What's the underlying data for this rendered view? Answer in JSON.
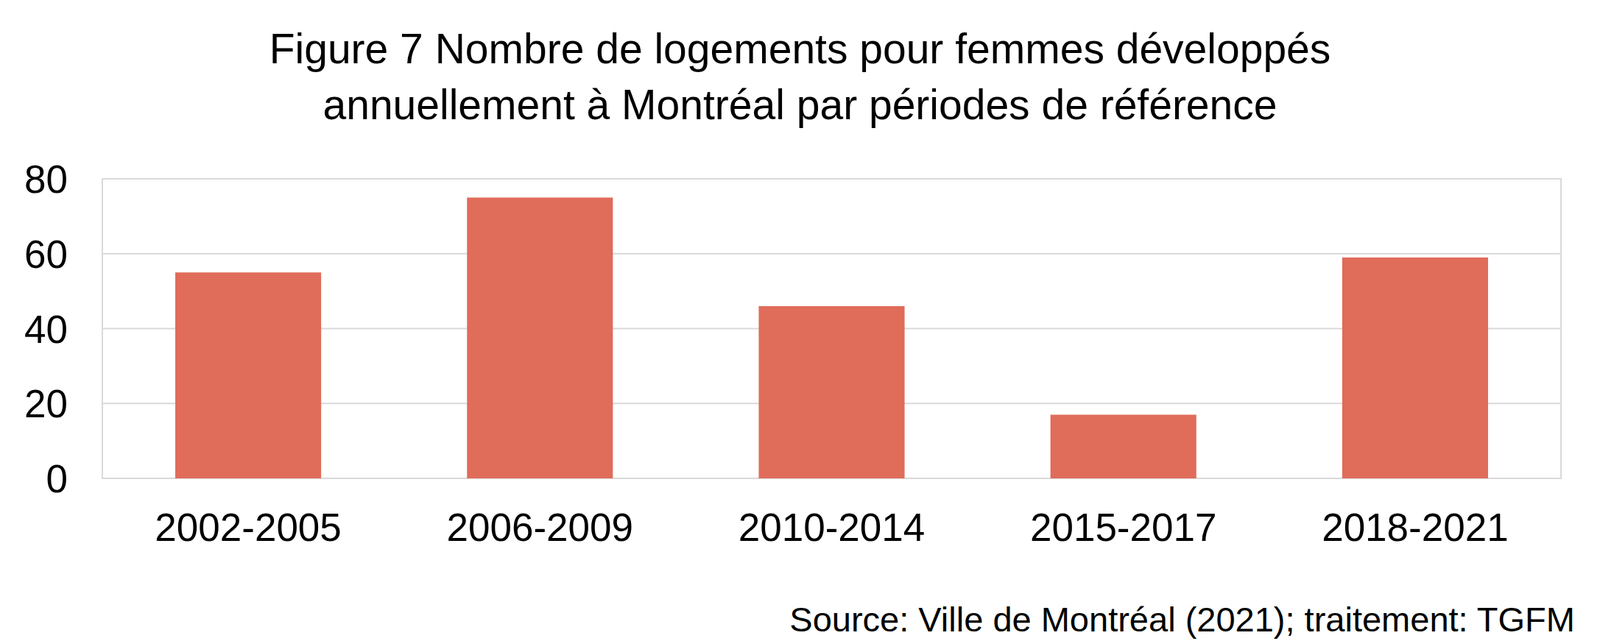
{
  "chart_data": {
    "type": "bar",
    "title": "Figure 7 Nombre de logements pour femmes développés annuellement à Montréal par périodes de référence",
    "categories": [
      "2002-2005",
      "2006-2009",
      "2010-2014",
      "2015-2017",
      "2018-2021"
    ],
    "values": [
      55,
      75,
      46,
      17,
      59
    ],
    "color": "#e06c5a",
    "ylim": [
      0,
      80
    ],
    "yticks": [
      0,
      20,
      40,
      60,
      80
    ],
    "grid": true,
    "source": "Source: Ville de Montréal (2021); traitement: TGFM"
  }
}
